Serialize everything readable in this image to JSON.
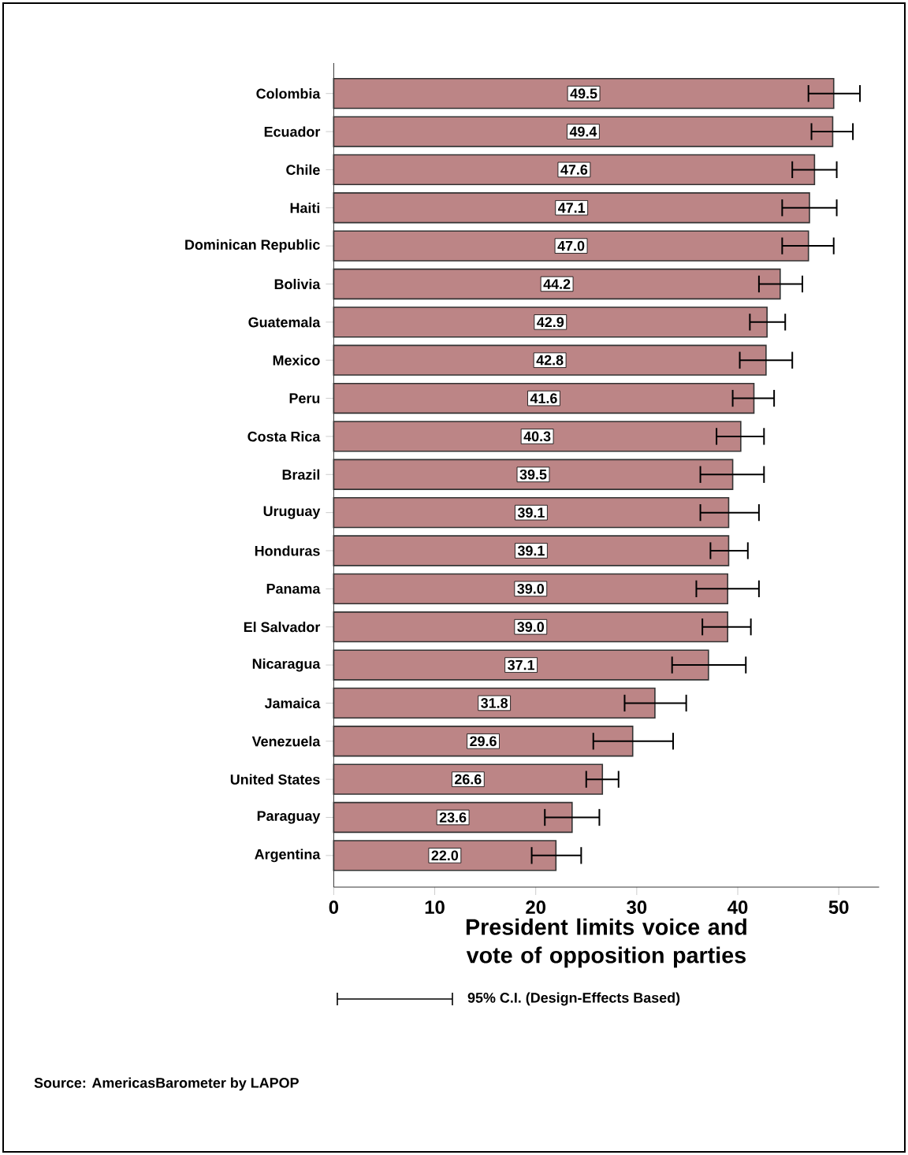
{
  "chart_data": {
    "type": "bar",
    "orientation": "horizontal",
    "xlabel": "President limits voice and vote of opposition parties",
    "categories": [
      "Colombia",
      "Ecuador",
      "Chile",
      "Haiti",
      "Dominican Republic",
      "Bolivia",
      "Guatemala",
      "Mexico",
      "Peru",
      "Costa Rica",
      "Brazil",
      "Uruguay",
      "Honduras",
      "Panama",
      "El Salvador",
      "Nicaragua",
      "Jamaica",
      "Venezuela",
      "United States",
      "Paraguay",
      "Argentina"
    ],
    "values": [
      49.5,
      49.4,
      47.6,
      47.1,
      47.0,
      44.2,
      42.9,
      42.8,
      41.6,
      40.3,
      39.5,
      39.1,
      39.1,
      39.0,
      39.0,
      37.1,
      31.8,
      29.6,
      26.6,
      23.6,
      22.0
    ],
    "errors": [
      [
        47.0,
        52.1
      ],
      [
        47.3,
        51.4
      ],
      [
        45.4,
        49.8
      ],
      [
        44.4,
        49.8
      ],
      [
        44.4,
        49.5
      ],
      [
        42.1,
        46.4
      ],
      [
        41.2,
        44.7
      ],
      [
        40.2,
        45.4
      ],
      [
        39.5,
        43.6
      ],
      [
        37.9,
        42.6
      ],
      [
        36.3,
        42.6
      ],
      [
        36.3,
        42.1
      ],
      [
        37.3,
        41.0
      ],
      [
        35.9,
        42.1
      ],
      [
        36.5,
        41.3
      ],
      [
        33.5,
        40.8
      ],
      [
        28.8,
        34.9
      ],
      [
        25.7,
        33.6
      ],
      [
        25.0,
        28.2
      ],
      [
        20.9,
        26.3
      ],
      [
        19.6,
        24.5
      ]
    ],
    "value_labels": [
      "49.5",
      "49.4",
      "47.6",
      "47.1",
      "47.0",
      "44.2",
      "42.9",
      "42.8",
      "41.6",
      "40.3",
      "39.5",
      "39.1",
      "39.1",
      "39.0",
      "39.0",
      "37.1",
      "31.8",
      "29.6",
      "26.6",
      "23.6",
      "22.0"
    ],
    "color": "#bc8586",
    "xlim": [
      0,
      54
    ],
    "xticks": [
      0,
      10,
      20,
      30,
      40,
      50
    ],
    "grid": false,
    "annotations": [
      "95% C.I. (Design-Effects Based)",
      "Source: AmericasBarometer by  LAPOP"
    ]
  }
}
